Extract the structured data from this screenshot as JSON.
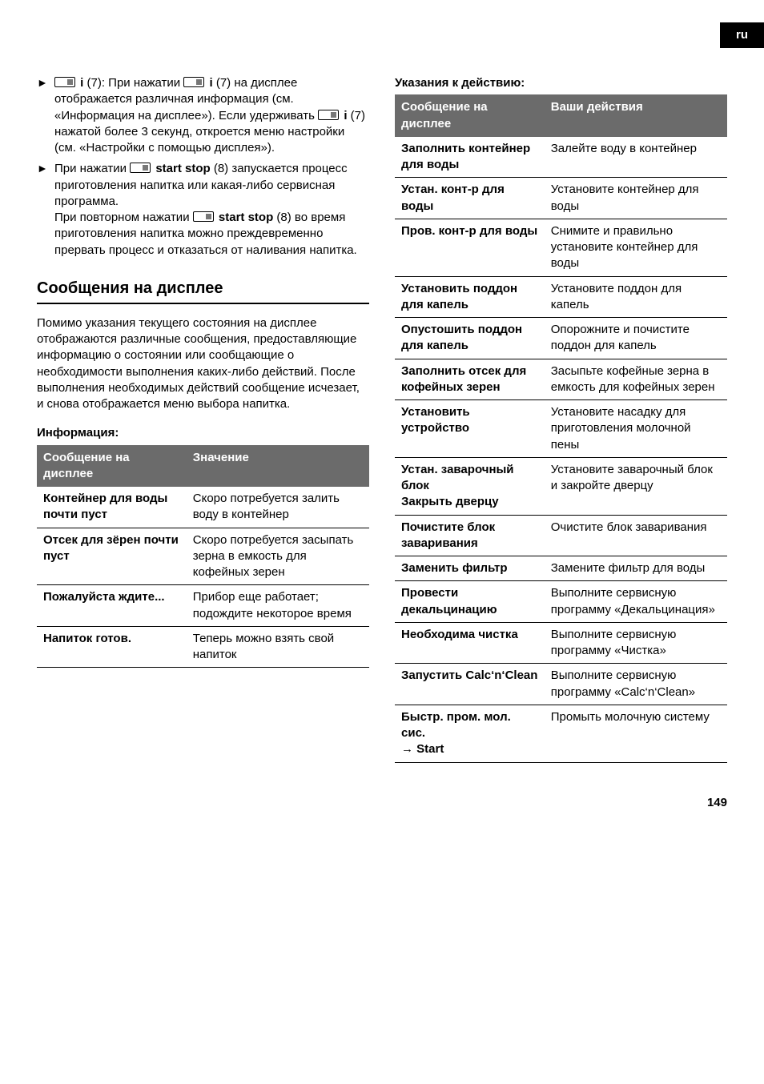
{
  "langTab": "ru",
  "left": {
    "bullets": [
      {
        "html": "<span class='btn-icon' data-name='button-icon' data-interactable='false'></span> <b>i</b> (7): При нажатии <span class='btn-icon' data-name='button-icon' data-interactable='false'></span> <b>i</b> (7) на дисплее отображается различная информация (см. «Информация на дисплее»). Если удерживать <span class='btn-icon' data-name='button-icon' data-interactable='false'></span> <b>i</b> (7) нажатой более 3 секунд, откроется меню настройки (см. «Настройки с помощью дисплея»)."
      },
      {
        "html": "При нажатии <span class='btn-icon' data-name='button-icon' data-interactable='false'></span> <b>start stop</b> (8) запускается процесс приготовления напитка или какая-либо сервисная программа.<br>При повторном нажатии <span class='btn-icon' data-name='button-icon' data-interactable='false'></span> <b>start stop</b> (8) во время приготовления напитка можно преждевременно прервать процесс и отказаться от наливания напитка."
      }
    ],
    "sectionTitle": "Сообщения на дисплее",
    "sectionPara": "Помимо указания текущего состояния на дисплее отображаются различные сообщения, предоставляющие информацию о состоянии или сообщающие о необходимости выполнения каких-либо действий. После выполнения необходимых действий сообщение исчезает, и снова отображается меню выбора напитка.",
    "infoHeading": "Информация:",
    "infoTable": {
      "headers": [
        "Сообщение на дисплее",
        "Значение"
      ],
      "rows": [
        [
          "Контейнер для воды почти пуст",
          "Скоро потребуется залить воду в контейнер"
        ],
        [
          "Отсек для зёрен почти пуст",
          "Скоро потребуется засыпать зерна в емкость для кофейных зерен"
        ],
        [
          "Пожалуйста ждите...",
          "Прибор еще работает; подождите некоторое время"
        ],
        [
          "Напиток готов.",
          "Теперь можно взять свой напиток"
        ]
      ]
    }
  },
  "right": {
    "actionsHeading": "Указания к действию:",
    "actionsTable": {
      "headers": [
        "Сообщение на дисплее",
        "Ваши действия"
      ],
      "rows": [
        [
          "Заполнить контейнер для воды",
          "Залейте воду в контейнер"
        ],
        [
          "Устан. конт-р для воды",
          "Установите контейнер для воды"
        ],
        [
          "Пров. конт-р для воды",
          "Снимите и правильно установите контейнер для воды"
        ],
        [
          "Установить поддон для капель",
          "Установите поддон для капель"
        ],
        [
          "Опустошить поддон для капель",
          "Опорожните и почистите поддон для капель"
        ],
        [
          "Заполнить отсек для кофейных зерен",
          "Засыпьте кофейные зерна в емкость для кофейных зерен"
        ],
        [
          "Установить устройство",
          "Установите насадку для приготовления молочной пены"
        ],
        [
          "Устан. заварочный блок\nЗакрыть дверцу",
          "Установите заварочный блок и закройте дверцу"
        ],
        [
          "Почистите блок заваривания",
          "Очистите блок заваривания"
        ],
        [
          "Заменить фильтр",
          "Замените фильтр для воды"
        ],
        [
          "Провести декальцинацию",
          "Выполните сервисную программу «Декальцинация»"
        ],
        [
          "Необходима чистка",
          "Выполните сервисную программу «Чистка»"
        ],
        [
          "Запустить Calc‘n‘Clean",
          "Выполните сервисную программу «Calc‘n‘Clean»"
        ],
        [
          "Быстр. пром. мол. сис.\n→ Start",
          "Промыть молочную систему"
        ]
      ]
    }
  },
  "pageNumber": "149"
}
